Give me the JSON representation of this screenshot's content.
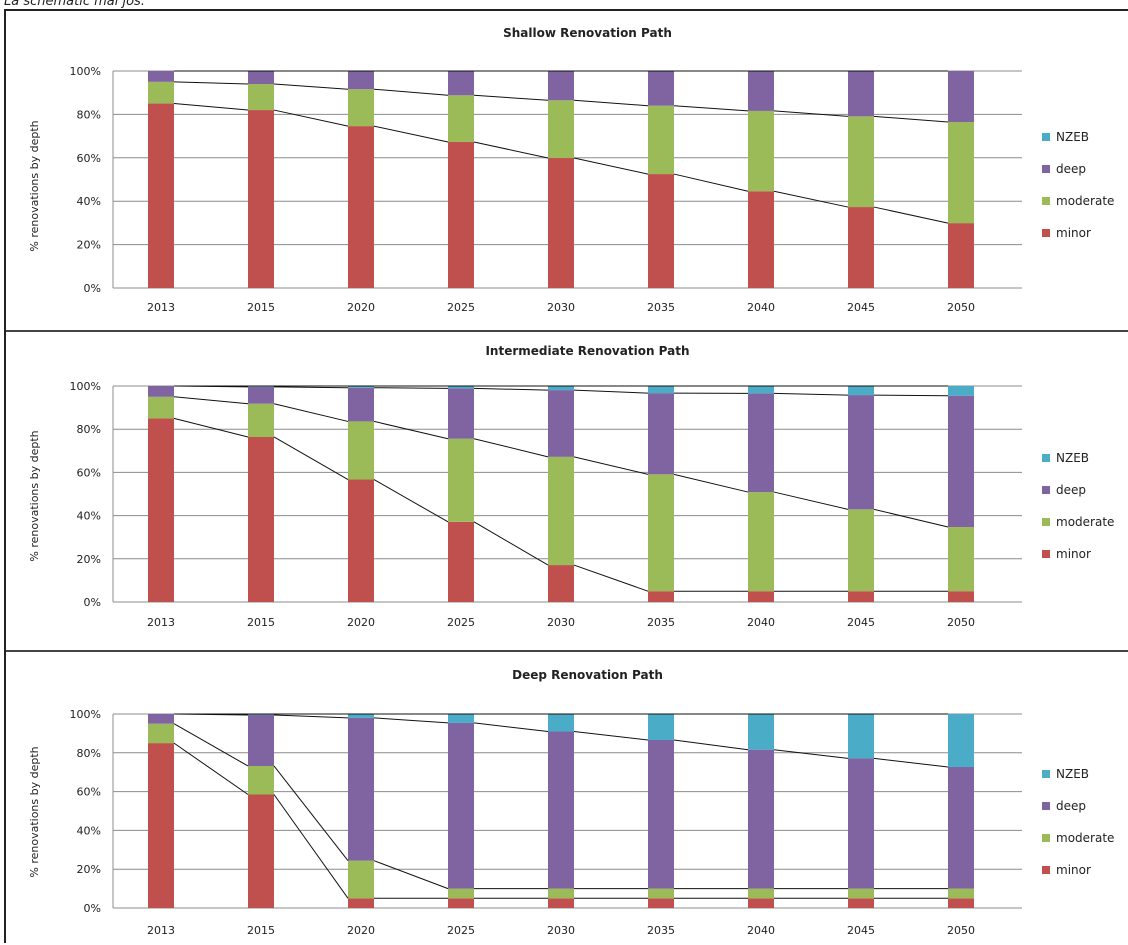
{
  "caption": "La schematic mai jos:",
  "colors": {
    "NZEB": "#4aacc6",
    "deep": "#8064a2",
    "moderate": "#9bbb59",
    "minor": "#c0504d"
  },
  "legend": [
    "NZEB",
    "deep",
    "moderate",
    "minor"
  ],
  "chart_data": [
    {
      "type": "bar",
      "stacked": true,
      "title": "Shallow Renovation Path",
      "ylabel": "% renovations by depth",
      "ylim": [
        0,
        100
      ],
      "yticks": [
        "0%",
        "20%",
        "40%",
        "60%",
        "80%",
        "100%"
      ],
      "categories": [
        "2013",
        "2015",
        "2020",
        "2025",
        "2030",
        "2035",
        "2040",
        "2045",
        "2050"
      ],
      "series": [
        {
          "name": "minor",
          "values": [
            85,
            82,
            74.6,
            67.3,
            59.9,
            52.5,
            44.6,
            37.3,
            29.9
          ]
        },
        {
          "name": "moderate",
          "values": [
            10,
            12,
            17,
            21.5,
            26.6,
            31.5,
            37,
            41.8,
            46.6
          ]
        },
        {
          "name": "deep",
          "values": [
            5,
            6,
            8.4,
            11.2,
            13.5,
            16,
            18.4,
            20.9,
            23.5
          ]
        },
        {
          "name": "NZEB",
          "values": [
            0,
            0,
            0,
            0,
            0,
            0,
            0,
            0,
            0
          ]
        }
      ],
      "legend_position": "right",
      "grid": true
    },
    {
      "type": "bar",
      "stacked": true,
      "title": "Intermediate Renovation Path",
      "ylabel": "% renovations by depth",
      "ylim": [
        0,
        100
      ],
      "yticks": [
        "0%",
        "20%",
        "40%",
        "60%",
        "80%",
        "100%"
      ],
      "categories": [
        "2013",
        "2015",
        "2020",
        "2025",
        "2030",
        "2035",
        "2040",
        "2045",
        "2050"
      ],
      "series": [
        {
          "name": "minor",
          "values": [
            85,
            76.4,
            56.7,
            37.1,
            17.1,
            5,
            5,
            5,
            5
          ]
        },
        {
          "name": "moderate",
          "values": [
            10,
            15.4,
            26.9,
            38.5,
            50.1,
            54.1,
            45.9,
            37.9,
            29.7
          ]
        },
        {
          "name": "deep",
          "values": [
            5,
            7.8,
            15.6,
            23.3,
            30.9,
            37.6,
            45.7,
            52.9,
            60.8
          ]
        },
        {
          "name": "NZEB",
          "values": [
            0,
            0.4,
            0.8,
            1.1,
            1.9,
            3.3,
            3.4,
            4.2,
            4.5
          ]
        }
      ],
      "legend_position": "right",
      "grid": true
    },
    {
      "type": "bar",
      "stacked": true,
      "title": "Deep Renovation Path",
      "ylabel": "% renovations by depth",
      "ylim": [
        0,
        100
      ],
      "yticks": [
        "0%",
        "20%",
        "40%",
        "60%",
        "80%",
        "100%"
      ],
      "categories": [
        "2013",
        "2015",
        "2020",
        "2025",
        "2030",
        "2035",
        "2040",
        "2045",
        "2050"
      ],
      "series": [
        {
          "name": "minor",
          "values": [
            85,
            58.5,
            5,
            5,
            5,
            5,
            5,
            5,
            5
          ]
        },
        {
          "name": "moderate",
          "values": [
            10,
            14.7,
            19.4,
            5,
            5,
            5,
            5,
            5,
            5
          ]
        },
        {
          "name": "deep",
          "values": [
            5,
            26.3,
            73.6,
            85.4,
            81,
            76.6,
            71.6,
            67.1,
            62.7
          ]
        },
        {
          "name": "NZEB",
          "values": [
            0,
            0.5,
            2,
            4.6,
            9,
            13.4,
            18.4,
            22.9,
            27.3
          ]
        }
      ],
      "legend_position": "right",
      "grid": true
    }
  ]
}
